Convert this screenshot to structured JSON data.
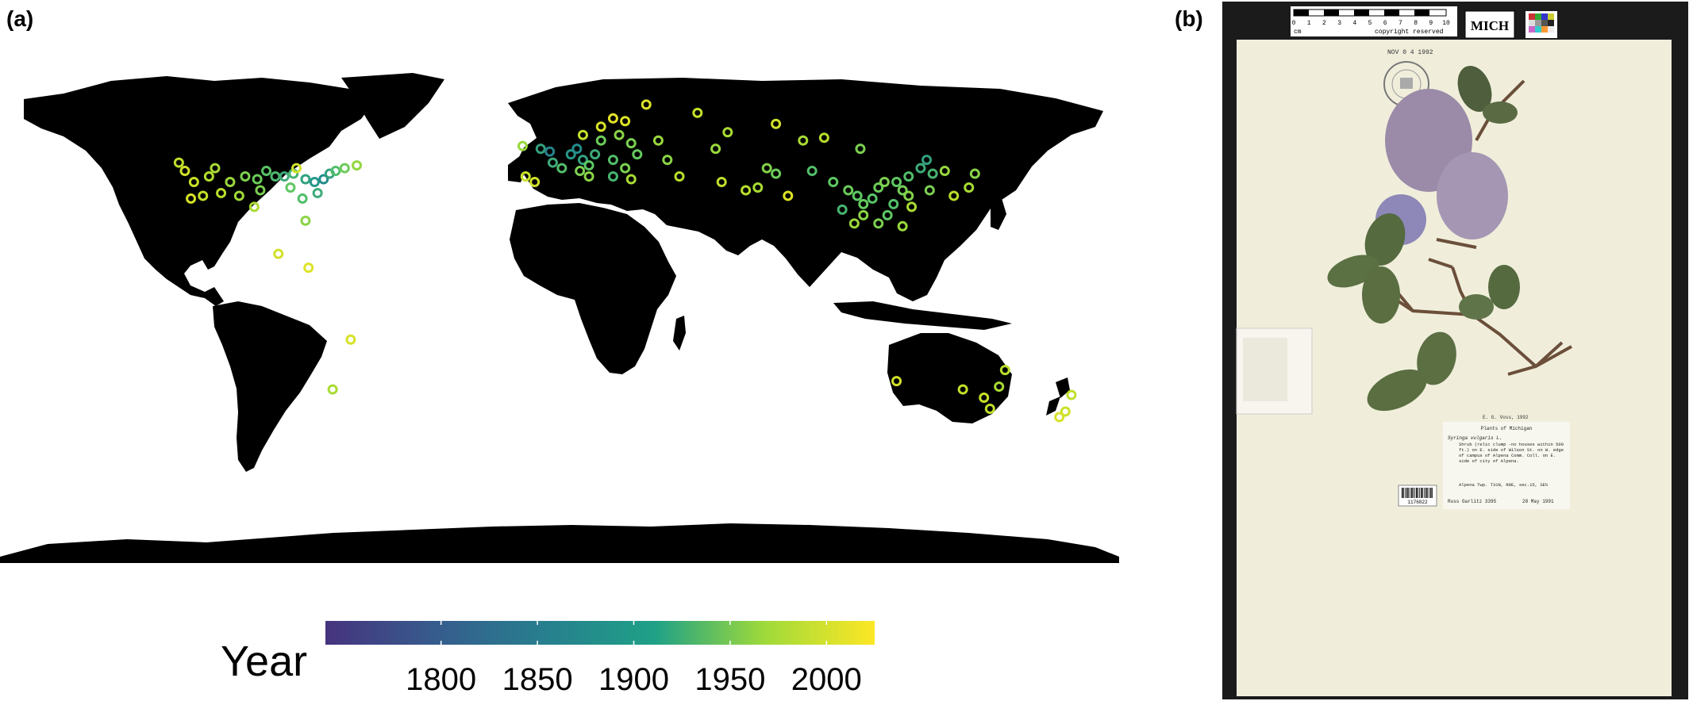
{
  "panels": {
    "a_label": "(a)",
    "b_label": "(b)"
  },
  "colors": {
    "land": "#000000",
    "ocean": "#ffffff",
    "viridis": [
      "#440154",
      "#3b528b",
      "#21918c",
      "#5ec962",
      "#b5de2b",
      "#fde725"
    ]
  },
  "colorbar": {
    "title": "Year",
    "range": [
      1740,
      2025
    ],
    "ticks": [
      "1800",
      "1850",
      "1900",
      "1950",
      "2000"
    ],
    "tick_values": [
      1800,
      1850,
      1900,
      1950,
      2000
    ]
  },
  "occurrences": [
    {
      "lon": -122,
      "lat": 47,
      "year": 1975
    },
    {
      "lon": -120,
      "lat": 44,
      "year": 1990
    },
    {
      "lon": -117,
      "lat": 40,
      "year": 1985
    },
    {
      "lon": -112,
      "lat": 42,
      "year": 1965
    },
    {
      "lon": -110,
      "lat": 45,
      "year": 1960
    },
    {
      "lon": -105,
      "lat": 40,
      "year": 1950
    },
    {
      "lon": -100,
      "lat": 42,
      "year": 1930
    },
    {
      "lon": -96,
      "lat": 41,
      "year": 1920
    },
    {
      "lon": -93,
      "lat": 44,
      "year": 1905
    },
    {
      "lon": -90,
      "lat": 42,
      "year": 1895
    },
    {
      "lon": -87,
      "lat": 42,
      "year": 1880
    },
    {
      "lon": -84,
      "lat": 43,
      "year": 1890
    },
    {
      "lon": -83,
      "lat": 45,
      "year": 1991
    },
    {
      "lon": -80,
      "lat": 41,
      "year": 1870
    },
    {
      "lon": -77,
      "lat": 40,
      "year": 1860
    },
    {
      "lon": -74,
      "lat": 41,
      "year": 1850
    },
    {
      "lon": -72,
      "lat": 43,
      "year": 1870
    },
    {
      "lon": -70,
      "lat": 44,
      "year": 1900
    },
    {
      "lon": -76,
      "lat": 36,
      "year": 1880
    },
    {
      "lon": -81,
      "lat": 34,
      "year": 1900
    },
    {
      "lon": -85,
      "lat": 38,
      "year": 1910
    },
    {
      "lon": -95,
      "lat": 37,
      "year": 1930
    },
    {
      "lon": -102,
      "lat": 35,
      "year": 1955
    },
    {
      "lon": -108,
      "lat": 36,
      "year": 1970
    },
    {
      "lon": -114,
      "lat": 35,
      "year": 1980
    },
    {
      "lon": -118,
      "lat": 34,
      "year": 1995
    },
    {
      "lon": -97,
      "lat": 31,
      "year": 1960
    },
    {
      "lon": -80,
      "lat": 26,
      "year": 1940
    },
    {
      "lon": -89,
      "lat": 14,
      "year": 1990
    },
    {
      "lon": -79,
      "lat": 9,
      "year": 2000
    },
    {
      "lon": -65,
      "lat": -17,
      "year": 1995
    },
    {
      "lon": -71,
      "lat": -35,
      "year": 1960
    },
    {
      "lon": -67,
      "lat": 45,
      "year": 1920
    },
    {
      "lon": -63,
      "lat": 46,
      "year": 1945
    },
    {
      "lon": -8,
      "lat": 53,
      "year": 1950
    },
    {
      "lon": -2,
      "lat": 52,
      "year": 1870
    },
    {
      "lon": 1,
      "lat": 51,
      "year": 1840
    },
    {
      "lon": -4,
      "lat": 40,
      "year": 1990
    },
    {
      "lon": 2,
      "lat": 47,
      "year": 1880
    },
    {
      "lon": 5,
      "lat": 45,
      "year": 1900
    },
    {
      "lon": 8,
      "lat": 50,
      "year": 1860
    },
    {
      "lon": 10,
      "lat": 52,
      "year": 1850
    },
    {
      "lon": 12,
      "lat": 48,
      "year": 1870
    },
    {
      "lon": 14,
      "lat": 46,
      "year": 1910
    },
    {
      "lon": 16,
      "lat": 50,
      "year": 1880
    },
    {
      "lon": 18,
      "lat": 55,
      "year": 1920
    },
    {
      "lon": 12,
      "lat": 57,
      "year": 1980
    },
    {
      "lon": 18,
      "lat": 60,
      "year": 1995
    },
    {
      "lon": 22,
      "lat": 63,
      "year": 2005
    },
    {
      "lon": 26,
      "lat": 62,
      "year": 2000
    },
    {
      "lon": 24,
      "lat": 57,
      "year": 1940
    },
    {
      "lon": 28,
      "lat": 54,
      "year": 1930
    },
    {
      "lon": 30,
      "lat": 50,
      "year": 1915
    },
    {
      "lon": 22,
      "lat": 48,
      "year": 1900
    },
    {
      "lon": 26,
      "lat": 45,
      "year": 1930
    },
    {
      "lon": 22,
      "lat": 42,
      "year": 1890
    },
    {
      "lon": 28,
      "lat": 41,
      "year": 1960
    },
    {
      "lon": 37,
      "lat": 55,
      "year": 1950
    },
    {
      "lon": 40,
      "lat": 48,
      "year": 1940
    },
    {
      "lon": 44,
      "lat": 42,
      "year": 1970
    },
    {
      "lon": 14,
      "lat": 42,
      "year": 1940
    },
    {
      "lon": 11,
      "lat": 44,
      "year": 1930
    },
    {
      "lon": -7,
      "lat": 42,
      "year": 1985
    },
    {
      "lon": 33,
      "lat": 68,
      "year": 2000
    },
    {
      "lon": 50,
      "lat": 65,
      "year": 1980
    },
    {
      "lon": 60,
      "lat": 58,
      "year": 1960
    },
    {
      "lon": 56,
      "lat": 52,
      "year": 1950
    },
    {
      "lon": 73,
      "lat": 45,
      "year": 1935
    },
    {
      "lon": 76,
      "lat": 43,
      "year": 1920
    },
    {
      "lon": 70,
      "lat": 38,
      "year": 1960
    },
    {
      "lon": 66,
      "lat": 37,
      "year": 1970
    },
    {
      "lon": 58,
      "lat": 40,
      "year": 1975
    },
    {
      "lon": 80,
      "lat": 35,
      "year": 2000
    },
    {
      "lon": 88,
      "lat": 44,
      "year": 1900
    },
    {
      "lon": 95,
      "lat": 40,
      "year": 1910
    },
    {
      "lon": 100,
      "lat": 37,
      "year": 1920
    },
    {
      "lon": 103,
      "lat": 35,
      "year": 1910
    },
    {
      "lon": 105,
      "lat": 32,
      "year": 1915
    },
    {
      "lon": 108,
      "lat": 34,
      "year": 1905
    },
    {
      "lon": 110,
      "lat": 38,
      "year": 1920
    },
    {
      "lon": 112,
      "lat": 40,
      "year": 1930
    },
    {
      "lon": 116,
      "lat": 40,
      "year": 1910
    },
    {
      "lon": 118,
      "lat": 37,
      "year": 1925
    },
    {
      "lon": 120,
      "lat": 35,
      "year": 1935
    },
    {
      "lon": 115,
      "lat": 32,
      "year": 1900
    },
    {
      "lon": 113,
      "lat": 28,
      "year": 1910
    },
    {
      "lon": 110,
      "lat": 25,
      "year": 1930
    },
    {
      "lon": 105,
      "lat": 28,
      "year": 1940
    },
    {
      "lon": 102,
      "lat": 25,
      "year": 1950
    },
    {
      "lon": 98,
      "lat": 30,
      "year": 1890
    },
    {
      "lon": 120,
      "lat": 42,
      "year": 1900
    },
    {
      "lon": 124,
      "lat": 45,
      "year": 1880
    },
    {
      "lon": 126,
      "lat": 48,
      "year": 1870
    },
    {
      "lon": 128,
      "lat": 43,
      "year": 1890
    },
    {
      "lon": 127,
      "lat": 37,
      "year": 1930
    },
    {
      "lon": 132,
      "lat": 44,
      "year": 1950
    },
    {
      "lon": 135,
      "lat": 35,
      "year": 1970
    },
    {
      "lon": 140,
      "lat": 38,
      "year": 1960
    },
    {
      "lon": 142,
      "lat": 43,
      "year": 1940
    },
    {
      "lon": 121,
      "lat": 31,
      "year": 1960
    },
    {
      "lon": 118,
      "lat": 24,
      "year": 1950
    },
    {
      "lon": 104,
      "lat": 52,
      "year": 1930
    },
    {
      "lon": 85,
      "lat": 55,
      "year": 1960
    },
    {
      "lon": 76,
      "lat": 61,
      "year": 1990
    },
    {
      "lon": 92,
      "lat": 56,
      "year": 1970
    },
    {
      "lon": 116,
      "lat": -32,
      "year": 1990
    },
    {
      "lon": 145,
      "lat": -38,
      "year": 1985
    },
    {
      "lon": 150,
      "lat": -34,
      "year": 1960
    },
    {
      "lon": 152,
      "lat": -28,
      "year": 1970
    },
    {
      "lon": 147,
      "lat": -42,
      "year": 1975
    },
    {
      "lon": 138,
      "lat": -35,
      "year": 1980
    },
    {
      "lon": 174,
      "lat": -37,
      "year": 1975
    },
    {
      "lon": 172,
      "lat": -43,
      "year": 1985
    },
    {
      "lon": 170,
      "lat": -45,
      "year": 1995
    }
  ],
  "herbarium": {
    "ruler_label": "cm",
    "ruler_numbers": [
      "0",
      "1",
      "2",
      "3",
      "4",
      "5",
      "6",
      "7",
      "8",
      "9",
      "10"
    ],
    "copyright": "copyright reserved",
    "herbarium_code": "MICH",
    "stamp_date": "NOV 0 4 1992",
    "determiner": "E. G. Voss, 1992",
    "label_header": "Plants of Michigan",
    "species": "Syringa vulgaris L.",
    "description": "Shrub (relic clump -no houses within 500 ft.) on E. side of Wilson St. on W. edge of campus of Alpena Comm. Coll. on E. side of city of Alpena.",
    "locality": "Alpena Twp. T31N, R8E, sec.15, SE¼",
    "collector": "Russ Garlitz 3395",
    "date": "28 May 1991",
    "barcode": "1176822"
  }
}
